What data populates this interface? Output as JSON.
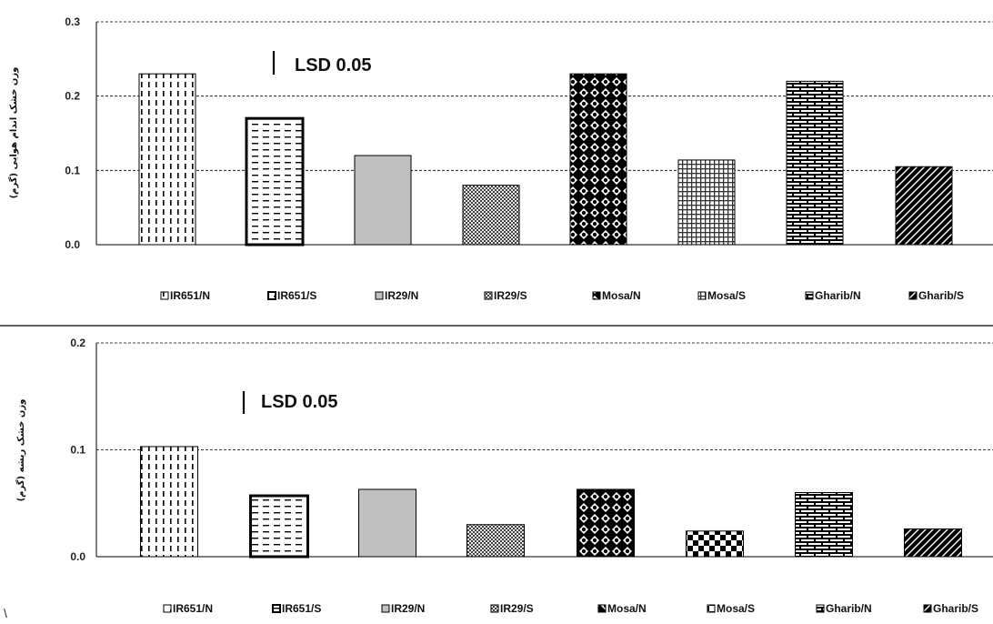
{
  "chart_data": [
    {
      "type": "bar",
      "categories": [
        "IR651/N",
        "IR651/S",
        "IR29/N",
        "IR29/S",
        "Mosa/N",
        "Mosa/S",
        "Gharib/N",
        "Gharib/S"
      ],
      "values": [
        0.23,
        0.17,
        0.12,
        0.08,
        0.23,
        0.114,
        0.22,
        0.105
      ],
      "ylabel": "وزن خشک اندام هوایی (گرم)",
      "ylim": [
        0,
        0.3
      ],
      "yticks": [
        "0.0",
        "0.1",
        "0.2",
        "0.3"
      ],
      "annotation": "LSD 0.05",
      "legend_position": "bottom",
      "grid": true
    },
    {
      "type": "bar",
      "categories": [
        "IR651/N",
        "IR651/S",
        "IR29/N",
        "IR29/S",
        "Mosa/N",
        "Mosa/S",
        "Gharib/N",
        "Gharib/S"
      ],
      "values": [
        0.103,
        0.057,
        0.063,
        0.03,
        0.063,
        0.024,
        0.06,
        0.026
      ],
      "ylabel": "وزن خشک ریشه (گرم)",
      "ylim": [
        0,
        0.2
      ],
      "yticks": [
        "0.0",
        "0.1",
        "0.2"
      ],
      "annotation": "LSD 0.05",
      "legend_position": "bottom",
      "grid": true
    }
  ],
  "patterns": [
    "dashes-vertical",
    "dashes-horizontal",
    "solid-gray",
    "checker-fine",
    "dots-diamond",
    "grid-fine",
    "brick",
    "diagonal"
  ],
  "stray_mark": "\\"
}
